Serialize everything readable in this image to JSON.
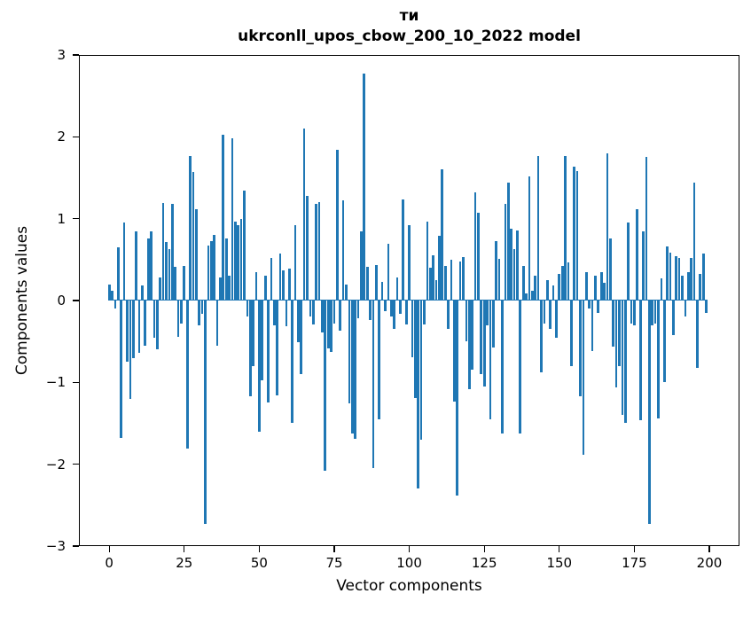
{
  "figure": {
    "title_line1": "ти",
    "title_line2": "ukrconll_upos_cbow_200_10_2022 model"
  },
  "chart_data": {
    "type": "bar",
    "title": "ти",
    "subtitle": "ukrconll_upos_cbow_200_10_2022 model",
    "xlabel": "Vector components",
    "ylabel": "Components values",
    "x_start": 0,
    "x_step": 1,
    "n_bars": 200,
    "xlim": [
      -9.95,
      209.95
    ],
    "ylim": [
      -3,
      3
    ],
    "x_ticks": [
      0,
      25,
      50,
      75,
      100,
      125,
      150,
      175,
      200
    ],
    "y_ticks": [
      3,
      2,
      1,
      0,
      -1,
      -2,
      -3
    ],
    "grid": false,
    "legend": null,
    "bar_color": "#1f77b4",
    "values": [
      0.2,
      0.12,
      -0.1,
      0.65,
      -1.68,
      0.95,
      -0.75,
      -1.2,
      -0.7,
      0.85,
      -0.64,
      0.18,
      -0.55,
      0.76,
      0.85,
      -0.45,
      -0.6,
      0.28,
      1.19,
      0.72,
      0.63,
      1.18,
      0.41,
      -0.44,
      -0.28,
      0.42,
      -1.81,
      1.76,
      1.57,
      1.12,
      -0.3,
      -0.16,
      -2.73,
      0.67,
      0.73,
      0.8,
      -0.55,
      0.28,
      2.02,
      0.76,
      0.3,
      1.98,
      0.96,
      0.92,
      1.0,
      1.34,
      -0.2,
      -1.17,
      -0.8,
      0.35,
      -1.6,
      -0.98,
      0.3,
      -1.25,
      0.52,
      -0.3,
      -1.16,
      0.57,
      0.37,
      -0.31,
      0.39,
      -1.49,
      0.92,
      -0.51,
      -0.9,
      2.1,
      1.28,
      -0.19,
      -0.29,
      1.18,
      1.2,
      -0.39,
      -2.08,
      -0.58,
      -0.63,
      -0.28,
      1.84,
      -0.37,
      1.22,
      0.19,
      -1.26,
      -1.62,
      -1.69,
      -0.22,
      0.85,
      2.77,
      0.41,
      -0.24,
      -2.05,
      0.43,
      -1.45,
      0.23,
      -0.13,
      0.69,
      -0.19,
      -0.35,
      0.28,
      -0.16,
      1.24,
      -0.29,
      0.92,
      -0.69,
      -1.19,
      -2.3,
      -1.7,
      -0.29,
      0.96,
      0.4,
      0.55,
      0.25,
      0.79,
      1.6,
      0.42,
      -0.35,
      0.5,
      -1.24,
      -2.38,
      0.48,
      0.53,
      -0.5,
      -1.08,
      -0.85,
      1.32,
      1.07,
      -0.9,
      -1.05,
      -0.3,
      -1.45,
      -0.57,
      0.73,
      0.51,
      -1.63,
      1.18,
      1.44,
      0.88,
      0.63,
      0.86,
      -1.63,
      0.42,
      0.09,
      1.52,
      0.12,
      0.3,
      1.76,
      -0.88,
      -0.28,
      0.25,
      -0.35,
      0.18,
      -0.46,
      0.33,
      0.42,
      1.76,
      0.47,
      -0.8,
      1.63,
      1.58,
      -1.17,
      -1.88,
      0.35,
      -0.1,
      -0.62,
      0.3,
      -0.15,
      0.35,
      0.22,
      1.8,
      0.76,
      -0.56,
      -1.06,
      -0.8,
      -1.4,
      -1.5,
      0.95,
      -0.28,
      -0.3,
      1.12,
      -1.46,
      0.84,
      1.75,
      -2.73,
      -0.3,
      -0.28,
      -1.44,
      0.27,
      -1.0,
      0.66,
      0.59,
      -0.42,
      0.54,
      0.52,
      0.3,
      -0.2,
      0.35,
      0.52,
      1.44,
      -0.82,
      0.32,
      0.57,
      -0.15
    ]
  }
}
